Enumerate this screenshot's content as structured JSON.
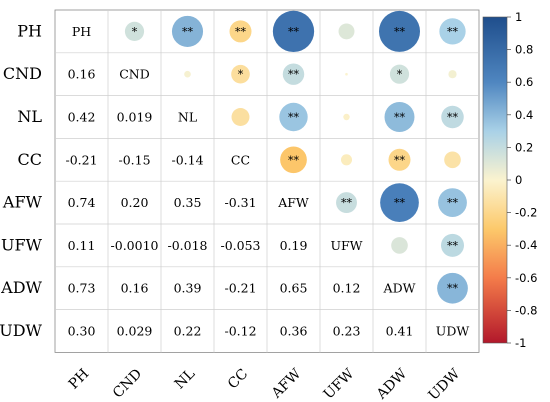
{
  "chart_data": {
    "type": "heatmap",
    "subtype": "correlation-matrix",
    "variables": [
      "PH",
      "CND",
      "NL",
      "CC",
      "AFW",
      "UFW",
      "ADW",
      "UDW"
    ],
    "lower_triangle_values": [
      [
        null,
        null,
        null,
        null,
        null,
        null,
        null,
        null
      ],
      [
        "0.16",
        null,
        null,
        null,
        null,
        null,
        null,
        null
      ],
      [
        "0.42",
        "0.019",
        null,
        null,
        null,
        null,
        null,
        null
      ],
      [
        "-0.21",
        "-0.15",
        "-0.14",
        null,
        null,
        null,
        null,
        null
      ],
      [
        "0.74",
        "0.20",
        "0.35",
        "-0.31",
        null,
        null,
        null,
        null
      ],
      [
        "0.11",
        "-0.0010",
        "-0.018",
        "-0.053",
        "0.19",
        null,
        null,
        null
      ],
      [
        "0.73",
        "0.16",
        "0.39",
        "-0.21",
        "0.65",
        "0.12",
        null,
        null
      ],
      [
        "0.30",
        "0.029",
        "0.22",
        "-0.12",
        "0.36",
        "0.23",
        "0.41",
        null
      ]
    ],
    "significance": [
      [
        null,
        "*",
        "**",
        "**",
        "**",
        "",
        "**",
        "**"
      ],
      [
        null,
        null,
        "",
        "*",
        "**",
        "",
        "*",
        ""
      ],
      [
        null,
        null,
        null,
        "",
        "**",
        "",
        "**",
        "**"
      ],
      [
        null,
        null,
        null,
        null,
        "**",
        "",
        "**",
        ""
      ],
      [
        null,
        null,
        null,
        null,
        null,
        "**",
        "**",
        "**"
      ],
      [
        null,
        null,
        null,
        null,
        null,
        null,
        "",
        "**"
      ],
      [
        null,
        null,
        null,
        null,
        null,
        null,
        null,
        "**"
      ]
    ],
    "upper_triangle": "circles (size and color by correlation)",
    "lower_triangle": "numeric values",
    "colorbar": {
      "range": [
        -1,
        1
      ],
      "ticks": [
        "1",
        "0.8",
        "0.6",
        "0.4",
        "0.2",
        "0",
        "-0.2",
        "-0.4",
        "-0.6",
        "-0.8",
        "-1"
      ],
      "colors": {
        "negative_end": "#b2182b",
        "mid_negative": "#f4a582",
        "neutral": "#fee8a8",
        "mid_positive": "#92c5de",
        "positive_end": "#2c5aa0"
      },
      "placement": "right"
    },
    "grid": true
  }
}
